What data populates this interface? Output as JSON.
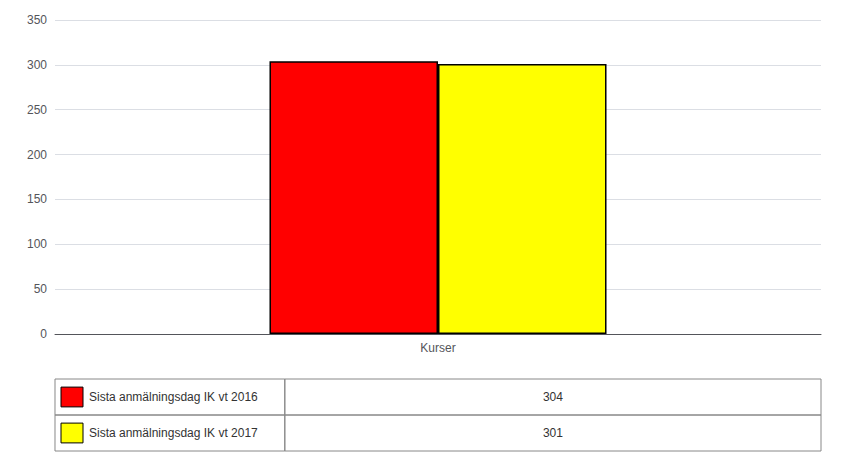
{
  "chart_data": {
    "type": "bar",
    "categories": [
      "Kurser"
    ],
    "series": [
      {
        "name": "Sista anmälningsdag IK vt 2016",
        "color": "#FF0000",
        "values": [
          304
        ]
      },
      {
        "name": "Sista anmälningsdag IK vt 2017",
        "color": "#FFFF00",
        "values": [
          301
        ]
      }
    ],
    "ylim": [
      0,
      350
    ],
    "yticks": [
      0,
      50,
      100,
      150,
      200,
      250,
      300,
      350
    ],
    "grid": true,
    "legend": "bottom"
  }
}
